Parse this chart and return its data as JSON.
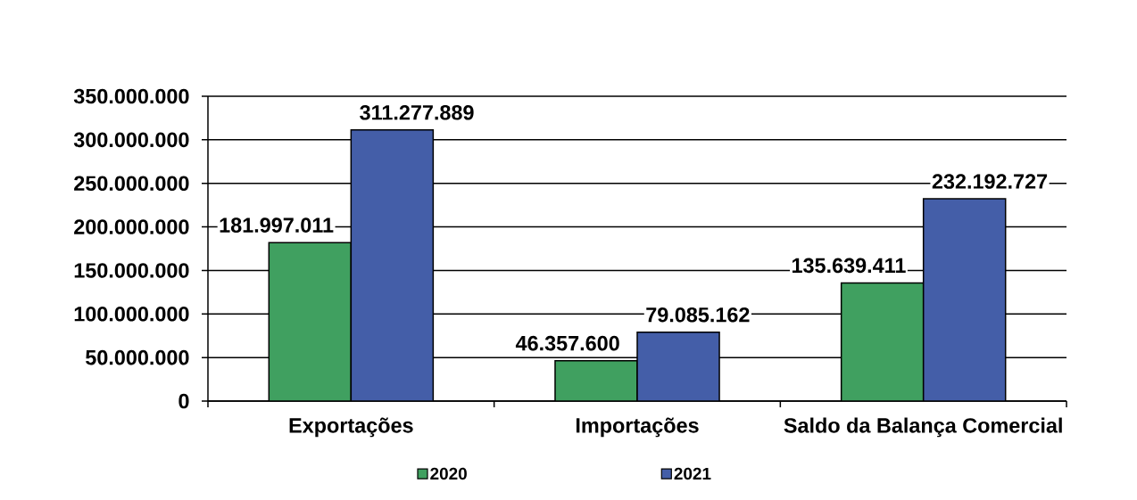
{
  "chart_data": {
    "type": "bar",
    "categories": [
      "Exportações",
      "Importações",
      "Saldo da Balança Comercial"
    ],
    "series": [
      {
        "name": "2020",
        "color": "#40a060",
        "values": [
          181997011,
          46357600,
          135639411
        ],
        "value_labels": [
          "181.997.011",
          "46.357.600",
          "135.639.411"
        ]
      },
      {
        "name": "2021",
        "color": "#445ea8",
        "values": [
          311277889,
          79085162,
          232192727
        ],
        "value_labels": [
          "311.277.889",
          "79.085.162",
          "232.192.727"
        ]
      }
    ],
    "ylim": [
      0,
      350000000
    ],
    "yticks": [
      0,
      {
        "value": 50000000,
        "label": "50.000.000"
      },
      {
        "value": 100000000,
        "label": "100.000.000"
      },
      {
        "value": 150000000,
        "label": "150.000.000"
      },
      {
        "value": 200000000,
        "label": "200.000.000"
      },
      {
        "value": 250000000,
        "label": "250.000.000"
      },
      {
        "value": 300000000,
        "label": "300.000.000"
      },
      {
        "value": 350000000,
        "label": "350.000.000"
      }
    ],
    "grid": "y",
    "legend": "bottom"
  }
}
